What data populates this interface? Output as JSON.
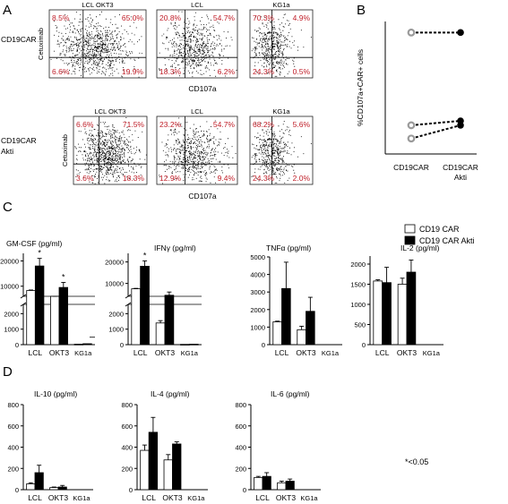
{
  "panels": {
    "A": "A",
    "B": "B",
    "C": "C",
    "D": "D"
  },
  "flow": {
    "row_labels": [
      [
        "CD19CAR"
      ],
      [
        "CD19CAR",
        "Akti"
      ]
    ],
    "y_axis": "Cetuximab",
    "x_axis": "CD107a",
    "plots": [
      {
        "title": "LCL OKT3",
        "q": [
          "8.5%",
          "65.0%",
          "6.6%",
          "19.9%"
        ],
        "density": "high"
      },
      {
        "title": "LCL",
        "q": [
          "20.8%",
          "54.7%",
          "18.3%",
          "6.2%"
        ],
        "density": "mid"
      },
      {
        "title": "KG1a",
        "q": [
          "70.3%",
          "4.9%",
          "24.3%",
          "0.5%"
        ],
        "density": "low"
      },
      {
        "title": "LCL OKT3",
        "q": [
          "6.6%",
          "71.5%",
          "3.6%",
          "18.3%"
        ],
        "density": "high"
      },
      {
        "title": "LCL",
        "q": [
          "23.2%",
          "54.7%",
          "12.9%",
          "9.4%"
        ],
        "density": "mid"
      },
      {
        "title": "KG1a",
        "q": [
          "68.2%",
          "5.6%",
          "24.3%",
          "2.0%"
        ],
        "density": "low"
      }
    ]
  },
  "chart_data": [
    {
      "panel": "B",
      "type": "scatter",
      "ylabel": "%CD107a+CAR+ cells",
      "categories": [
        "CD19CAR",
        "CD19CAR Akti"
      ],
      "category_lines": [
        [
          "CD19CAR"
        ],
        [
          "CD19CAR",
          "Akti"
        ]
      ],
      "ylim": [
        0,
        60
      ],
      "pairs": [
        [
          55,
          55
        ],
        [
          13,
          15
        ],
        [
          7,
          13
        ]
      ]
    },
    {
      "panel": "C",
      "type": "bar",
      "title": "GM-CSF  (pg/ml)",
      "categories": [
        "LCL",
        "OKT3",
        "KG1a"
      ],
      "series": [
        {
          "values": [
            8300,
            5000,
            30
          ]
        },
        {
          "values": [
            18000,
            9500,
            60
          ]
        }
      ],
      "errors": [
        [
          200,
          200,
          0
        ],
        [
          3000,
          2000,
          0
        ]
      ],
      "broken_axis": true,
      "lower_ticks": [
        0,
        1000,
        2000
      ],
      "upper_ticks": [
        10000,
        20000
      ],
      "lower_max": 2600,
      "upper_range": [
        6000,
        23000
      ],
      "sig": [
        "*",
        "*",
        ""
      ],
      "small_dash": 480
    },
    {
      "panel": "C",
      "type": "bar",
      "title": "IFNγ (pg/ml)",
      "categories": [
        "LCL",
        "OKT3",
        "KG1a"
      ],
      "series": [
        {
          "values": [
            7500,
            1400,
            20
          ]
        },
        {
          "values": [
            18000,
            4500,
            30
          ]
        }
      ],
      "errors": [
        [
          200,
          150,
          0
        ],
        [
          2500,
          1500,
          0
        ]
      ],
      "broken_axis": true,
      "lower_ticks": [
        0,
        1000,
        2000
      ],
      "upper_ticks": [
        10000,
        20000
      ],
      "lower_max": 2600,
      "upper_range": [
        4000,
        24000
      ],
      "sig": [
        "*",
        "",
        ""
      ]
    },
    {
      "panel": "C",
      "type": "bar",
      "title": "TNFα (pg/ml)",
      "categories": [
        "LCL",
        "OKT3",
        "KG1a"
      ],
      "series": [
        {
          "values": [
            1300,
            850,
            0
          ]
        },
        {
          "values": [
            3200,
            1900,
            0
          ]
        }
      ],
      "errors": [
        [
          40,
          200,
          0
        ],
        [
          1500,
          800,
          0
        ]
      ],
      "ylim": [
        0,
        5000
      ],
      "ticks": [
        0,
        1000,
        2000,
        3000,
        4000,
        5000
      ]
    },
    {
      "panel": "C",
      "type": "bar",
      "title": "IL-2 (pg/ml)",
      "categories": [
        "LCL",
        "OKT3",
        "KG1a"
      ],
      "series": [
        {
          "values": [
            1580,
            1500,
            0
          ]
        },
        {
          "values": [
            1540,
            1800,
            0
          ]
        }
      ],
      "errors": [
        [
          30,
          150,
          0
        ],
        [
          380,
          300,
          0
        ]
      ],
      "ylim": [
        0,
        2200
      ],
      "ticks": [
        0,
        500,
        1000,
        1500,
        2000
      ]
    },
    {
      "panel": "D",
      "type": "bar",
      "title": "IL-10  (pg/ml)",
      "categories": [
        "LCL",
        "OKT3",
        "KG1a"
      ],
      "series": [
        {
          "values": [
            55,
            20,
            0
          ]
        },
        {
          "values": [
            160,
            25,
            0
          ]
        }
      ],
      "errors": [
        [
          10,
          5,
          0
        ],
        [
          70,
          15,
          0
        ]
      ],
      "ylim": [
        0,
        800
      ],
      "ticks": [
        0,
        200,
        400,
        600,
        800
      ]
    },
    {
      "panel": "D",
      "type": "bar",
      "title": "IL-4  (pg/ml)",
      "categories": [
        "LCL",
        "OKT3",
        "KG1a"
      ],
      "series": [
        {
          "values": [
            370,
            280,
            0
          ]
        },
        {
          "values": [
            540,
            430,
            0
          ]
        }
      ],
      "errors": [
        [
          50,
          50,
          0
        ],
        [
          140,
          20,
          0
        ]
      ],
      "ylim": [
        0,
        800
      ],
      "ticks": [
        0,
        200,
        400,
        600,
        800
      ]
    },
    {
      "panel": "D",
      "type": "bar",
      "title": "IL-6  (pg/ml)",
      "categories": [
        "LCL",
        "OKT3",
        "KG1a"
      ],
      "series": [
        {
          "values": [
            115,
            65,
            0
          ]
        },
        {
          "values": [
            125,
            80,
            0
          ]
        }
      ],
      "errors": [
        [
          10,
          15,
          0
        ],
        [
          35,
          20,
          0
        ]
      ],
      "ylim": [
        0,
        800
      ],
      "ticks": [
        0,
        200,
        400,
        600,
        800
      ]
    }
  ],
  "legend": [
    {
      "label": "CD19 CAR",
      "fill": "#ffffff"
    },
    {
      "label": "CD19 CAR Akti",
      "fill": "#000000"
    }
  ],
  "footnote": "*<0.05",
  "colors": {
    "quadrant_text": "#c0202a",
    "bar_dark": "#000000",
    "bar_light": "#ffffff",
    "open_marker": "#9a9a9a"
  }
}
